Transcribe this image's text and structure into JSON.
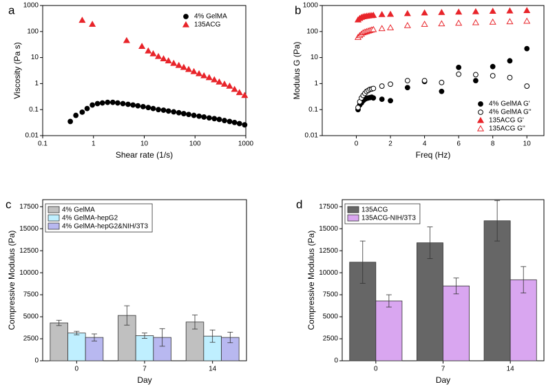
{
  "chart_data": [
    {
      "type": "scatter",
      "panel": "a",
      "x_label": "Shear rate (1/s)",
      "y_label": "Viscosity (Pa s)",
      "xscale": "log",
      "yscale": "log",
      "xlim": [
        0.1,
        1000
      ],
      "ylim": [
        0.01,
        1000
      ],
      "xticks": [
        0.1,
        1,
        10,
        100,
        1000
      ],
      "yticks": [
        0.01,
        0.1,
        1,
        10,
        100,
        1000
      ],
      "legend": "upper right",
      "series": [
        {
          "name": "4% GelMA",
          "color": "#000000",
          "marker": "circle",
          "filled": true,
          "x": [
            0.35,
            0.45,
            0.6,
            0.75,
            0.95,
            1.2,
            1.5,
            1.9,
            2.4,
            3,
            3.8,
            4.8,
            6,
            7.5,
            9.5,
            12,
            15,
            19,
            24,
            30,
            38,
            48,
            60,
            75,
            95,
            120,
            150,
            190,
            240,
            300,
            380,
            480,
            600,
            750,
            950
          ],
          "values": [
            0.035,
            0.06,
            0.08,
            0.11,
            0.15,
            0.17,
            0.18,
            0.19,
            0.19,
            0.18,
            0.17,
            0.16,
            0.15,
            0.14,
            0.13,
            0.12,
            0.11,
            0.1,
            0.095,
            0.088,
            0.082,
            0.076,
            0.07,
            0.065,
            0.06,
            0.056,
            0.052,
            0.048,
            0.045,
            0.042,
            0.038,
            0.035,
            0.032,
            0.029,
            0.026
          ]
        },
        {
          "name": "135ACG",
          "color": "#e8242a",
          "marker": "triangle",
          "filled": true,
          "x": [
            0.6,
            0.95,
            4.5,
            9,
            12,
            15,
            19,
            24,
            30,
            38,
            48,
            60,
            75,
            95,
            120,
            150,
            190,
            240,
            300,
            380,
            480,
            600,
            750,
            950
          ],
          "values": [
            270,
            190,
            45,
            27,
            18,
            14,
            11,
            9,
            7.5,
            6,
            5,
            4.2,
            3.5,
            2.9,
            2.4,
            2,
            1.7,
            1.4,
            1.15,
            0.95,
            0.8,
            0.6,
            0.45,
            0.35
          ]
        }
      ]
    },
    {
      "type": "scatter",
      "panel": "b",
      "x_label": "Freq (Hz)",
      "y_label": "Modulus G (Pa)",
      "xscale": "linear",
      "yscale": "log",
      "xlim": [
        -2,
        11
      ],
      "ylim": [
        0.01,
        1000
      ],
      "xticks": [
        0,
        2,
        4,
        6,
        8,
        10
      ],
      "yticks": [
        0.01,
        0.1,
        1,
        10,
        100,
        1000
      ],
      "legend": "lower right",
      "x": [
        0.1,
        0.2,
        0.3,
        0.4,
        0.5,
        0.6,
        0.7,
        0.8,
        0.9,
        1.0,
        1.5,
        2,
        3,
        4,
        5,
        6,
        7,
        8,
        9,
        10
      ],
      "series": [
        {
          "name": "4% GelMA G'",
          "color": "#000000",
          "marker": "circle",
          "filled": true,
          "values": [
            0.1,
            0.15,
            0.18,
            0.22,
            0.25,
            0.27,
            0.28,
            0.29,
            0.3,
            0.28,
            0.25,
            0.22,
            0.7,
            1.2,
            0.5,
            4.2,
            1.3,
            4.5,
            7.5,
            22
          ]
        },
        {
          "name": "4% GelMA G''",
          "color": "#000000",
          "marker": "circle",
          "filled": false,
          "values": [
            0.12,
            0.2,
            0.28,
            0.35,
            0.42,
            0.5,
            0.55,
            0.6,
            0.62,
            0.65,
            0.8,
            0.95,
            1.3,
            1.3,
            1.1,
            2.3,
            2.2,
            2.0,
            1.7,
            0.8
          ]
        },
        {
          "name": "135ACG G'",
          "color": "#e8242a",
          "marker": "triangle",
          "filled": true,
          "values": [
            280,
            320,
            350,
            370,
            380,
            390,
            400,
            410,
            410,
            420,
            450,
            460,
            490,
            520,
            540,
            560,
            580,
            600,
            620,
            640
          ]
        },
        {
          "name": "135ACG G''",
          "color": "#e8242a",
          "marker": "triangle",
          "filled": false,
          "values": [
            60,
            70,
            80,
            90,
            95,
            100,
            105,
            110,
            115,
            120,
            130,
            140,
            170,
            190,
            200,
            210,
            220,
            230,
            240,
            250
          ]
        }
      ]
    },
    {
      "type": "bar",
      "panel": "c",
      "x_label": "Day",
      "y_label": "Compressive Modulus (Pa)",
      "categories": [
        "0",
        "7",
        "14"
      ],
      "ylim": [
        0,
        18300
      ],
      "yticks": [
        0,
        2500,
        5000,
        7500,
        10000,
        12500,
        15000,
        17500
      ],
      "legend": "upper left",
      "series": [
        {
          "name": "4% GelMA",
          "color": "#c0c0c0",
          "values": [
            4300,
            5150,
            4400
          ],
          "errors": [
            300,
            1100,
            800
          ]
        },
        {
          "name": "4% GelMA-hepG2",
          "color": "#bfefff",
          "values": [
            3150,
            2850,
            2800
          ],
          "errors": [
            200,
            300,
            700
          ]
        },
        {
          "name": "4% GelMA-hepG2&NIH/3T3",
          "color": "#b8b8f0",
          "values": [
            2650,
            2650,
            2650
          ],
          "errors": [
            400,
            1000,
            600
          ]
        }
      ]
    },
    {
      "type": "bar",
      "panel": "d",
      "x_label": "Day",
      "y_label": "Compressive Modulus (Pa)",
      "categories": [
        "0",
        "7",
        "14"
      ],
      "ylim": [
        0,
        18300
      ],
      "yticks": [
        0,
        2500,
        5000,
        7500,
        10000,
        12500,
        15000,
        17500
      ],
      "legend": "upper left",
      "series": [
        {
          "name": "135ACG",
          "color": "#666666",
          "values": [
            11200,
            13400,
            15900
          ],
          "errors": [
            2400,
            1800,
            2300
          ]
        },
        {
          "name": "135ACG-NIH/3T3",
          "color": "#d9a6f0",
          "values": [
            6800,
            8500,
            9200
          ],
          "errors": [
            700,
            900,
            1500
          ]
        }
      ]
    }
  ]
}
